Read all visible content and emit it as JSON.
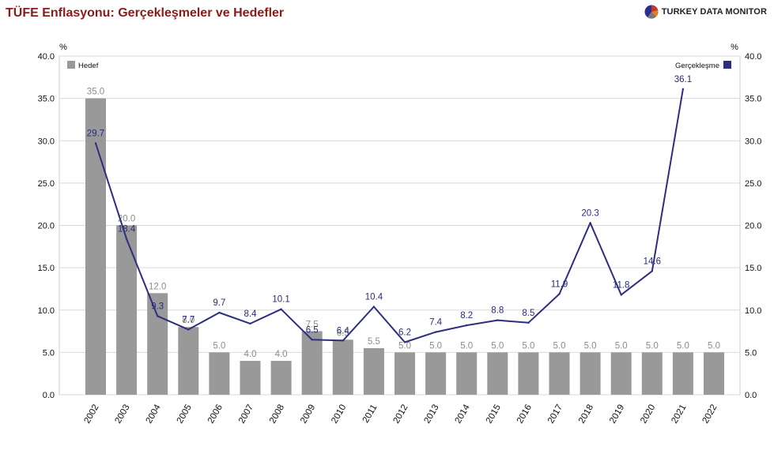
{
  "title": "TÜFE Enflasyonu: Gerçekleşmeler ve Hedefler",
  "brand": {
    "name": "TURKEY DATA MONITOR",
    "icon": "pie-logo-icon",
    "colors": [
      "#c0392b",
      "#2e2e8a",
      "#e67e22",
      "#7a7a7a"
    ]
  },
  "chart_data": {
    "type": "bar",
    "categories": [
      "2002",
      "2003",
      "2004",
      "2005",
      "2006",
      "2007",
      "2008",
      "2009",
      "2010",
      "2011",
      "2012",
      "2013",
      "2014",
      "2015",
      "2016",
      "2017",
      "2018",
      "2019",
      "2020",
      "2021",
      "2022"
    ],
    "series": [
      {
        "name": "Hedef",
        "type": "bar",
        "color": "#999999",
        "values": [
          35.0,
          20.0,
          12.0,
          8.0,
          5.0,
          4.0,
          4.0,
          7.5,
          6.5,
          5.5,
          5.0,
          5.0,
          5.0,
          5.0,
          5.0,
          5.0,
          5.0,
          5.0,
          5.0,
          5.0,
          5.0
        ],
        "labels": [
          "35.0",
          "20.0",
          "12.0",
          "8.0",
          "5.0",
          "4.0",
          "4.0",
          "7.5",
          "6.5",
          "5.5",
          "5.0",
          "5.0",
          "5.0",
          "5.0",
          "5.0",
          "5.0",
          "5.0",
          "5.0",
          "5.0",
          "5.0",
          "5.0"
        ]
      },
      {
        "name": "Gerçekleşme",
        "type": "line",
        "color": "#2e2e7f",
        "values": [
          29.7,
          18.4,
          9.3,
          7.7,
          9.7,
          8.4,
          10.1,
          6.5,
          6.4,
          10.4,
          6.2,
          7.4,
          8.2,
          8.8,
          8.5,
          11.9,
          20.3,
          11.8,
          14.6,
          36.1,
          null
        ],
        "labels": [
          "29.7",
          "18.4",
          "9.3",
          "7.7",
          "9.7",
          "8.4",
          "10.1",
          "6.5",
          "6.4",
          "10.4",
          "6.2",
          "7.4",
          "8.2",
          "8.8",
          "8.5",
          "11.9",
          "20.3",
          "11.8",
          "14.6",
          "36.1",
          ""
        ]
      }
    ],
    "yunit_left": "%",
    "yunit_right": "%",
    "ylim": [
      0,
      40
    ],
    "yticks": [
      "0.0",
      "5.0",
      "10.0",
      "15.0",
      "20.0",
      "25.0",
      "30.0",
      "35.0",
      "40.0"
    ],
    "grid": true,
    "legend": [
      {
        "name": "Hedef",
        "placement": "top-left"
      },
      {
        "name": "Gerçekleşme",
        "placement": "top-right"
      }
    ]
  }
}
